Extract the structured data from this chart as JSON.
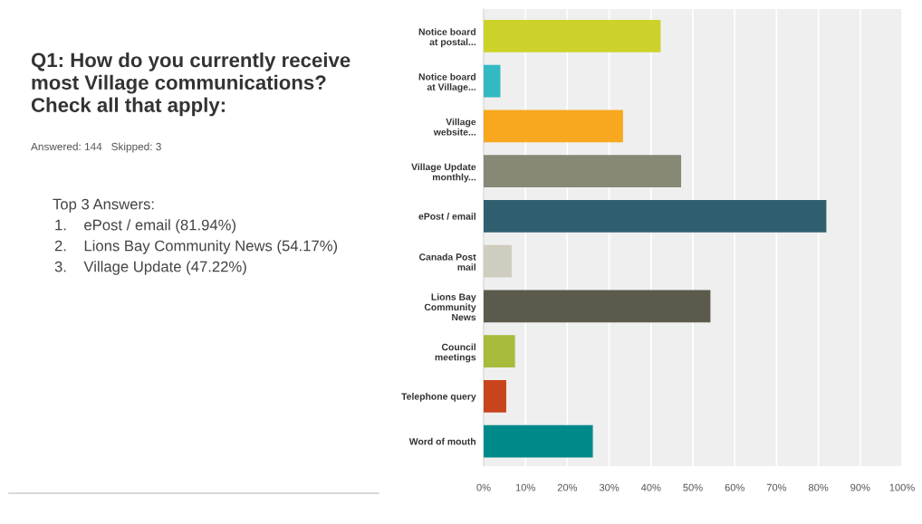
{
  "chart_data": {
    "type": "bar",
    "orientation": "horizontal",
    "title": "Q1: How do you currently receive\nmost Village communications?\nCheck all that apply:",
    "subtitle": "Answered: 144   Skipped: 3",
    "annotations": [
      "Top 3 Answers:",
      "1.    ePost / email (81.94%)",
      "2.    Lions Bay Community News (54.17%)",
      "3.    Village Update (47.22%)"
    ],
    "categories": [
      "Notice board\nat postal...",
      "Notice board\nat Village...",
      "Village\nwebsite...",
      "Village Update\nmonthly...",
      "ePost / email",
      "Canada Post\nmail",
      "Lions Bay\nCommunity\nNews",
      "Council\nmeetings",
      "Telephone query",
      "Word of mouth"
    ],
    "values": [
      42.3,
      4.0,
      33.3,
      47.2,
      81.9,
      6.7,
      54.2,
      7.5,
      5.4,
      26.1
    ],
    "colors": [
      "#cdd22a",
      "#33b9c2",
      "#f7a81f",
      "#888877",
      "#2f5f6e",
      "#cfcdbf",
      "#5b5a4c",
      "#a8bb3a",
      "#c8441c",
      "#00898a"
    ],
    "xlim": [
      0,
      100
    ],
    "xticks": [
      {
        "value": 0,
        "label": "0%"
      },
      {
        "value": 10,
        "label": "10%"
      },
      {
        "value": 20,
        "label": "20%"
      },
      {
        "value": 30,
        "label": "30%"
      },
      {
        "value": 40,
        "label": "40%"
      },
      {
        "value": 50,
        "label": "50%"
      },
      {
        "value": 60,
        "label": "60%"
      },
      {
        "value": 70,
        "label": "70%"
      },
      {
        "value": 80,
        "label": "80%"
      },
      {
        "value": 90,
        "label": "90%"
      },
      {
        "value": 100,
        "label": "100%"
      }
    ],
    "grid": "x"
  }
}
